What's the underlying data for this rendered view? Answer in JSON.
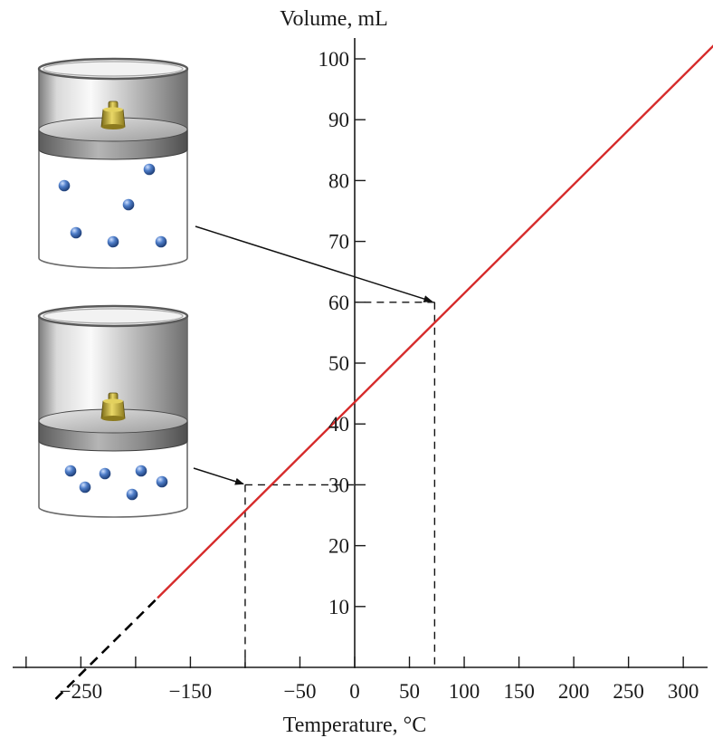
{
  "chart_data": {
    "type": "line",
    "title": "",
    "xlabel": "Temperature, °C",
    "ylabel": "Volume, mL",
    "xlim": [
      -300,
      330
    ],
    "ylim": [
      0,
      100
    ],
    "x_ticks": [
      -250,
      -150,
      -50,
      0,
      50,
      100,
      150,
      200,
      250,
      300
    ],
    "x_minor_ticks": [
      -300,
      -200,
      -100
    ],
    "y_ticks": [
      10,
      20,
      30,
      40,
      50,
      60,
      70,
      80,
      90,
      100
    ],
    "grid": false,
    "series": [
      {
        "style": "solid",
        "color": "#d62b2b",
        "x": [
          -180,
          330
        ],
        "y": [
          11.4,
          102.6
        ]
      },
      {
        "style": "dashed",
        "color": "#000000",
        "x": [
          -273,
          -180
        ],
        "y": [
          -5.2,
          11.4
        ]
      }
    ],
    "annotations": [
      {
        "type": "reference-point",
        "x": -100,
        "y": 30
      },
      {
        "type": "reference-point",
        "x": 73,
        "y": 60
      }
    ],
    "illustrations": [
      {
        "icon": "cylinder-with-piston-and-weight",
        "state": "large-volume",
        "points_to": [
          73,
          60
        ]
      },
      {
        "icon": "cylinder-with-piston-and-weight",
        "state": "small-volume",
        "points_to": [
          -100,
          30
        ]
      }
    ],
    "colors": {
      "line": "#d62b2b",
      "axis": "#1a1a1a",
      "particle": "#3f6fb8",
      "weight": "#c9b23c"
    }
  }
}
